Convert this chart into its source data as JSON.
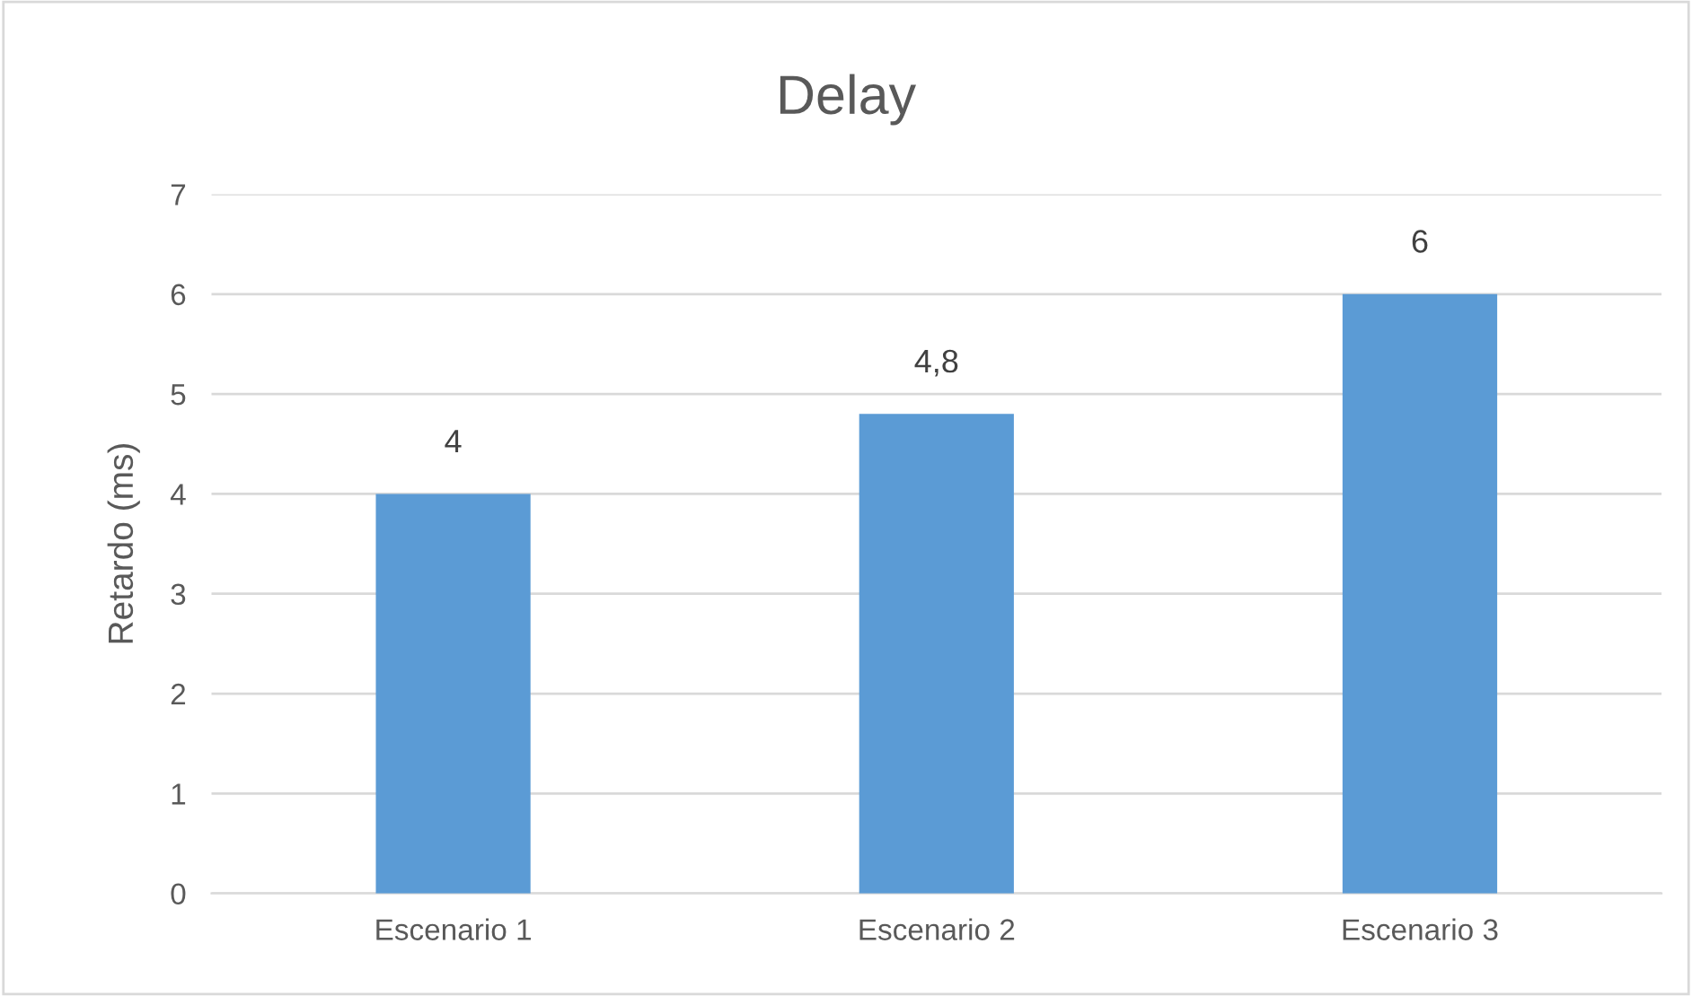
{
  "chart_data": {
    "type": "bar",
    "title": "Delay",
    "ylabel": "Retardo (ms)",
    "categories": [
      "Escenario 1",
      "Escenario 2",
      "Escenario 3"
    ],
    "values": [
      4,
      4.8,
      6
    ],
    "color": "#5b9bd5",
    "value_labels": [
      "4",
      "4,8",
      "6"
    ],
    "ylim": [
      0,
      7
    ],
    "yticks": [
      0,
      1,
      2,
      3,
      4,
      5,
      6,
      7
    ],
    "grid": "y",
    "legend": false
  }
}
